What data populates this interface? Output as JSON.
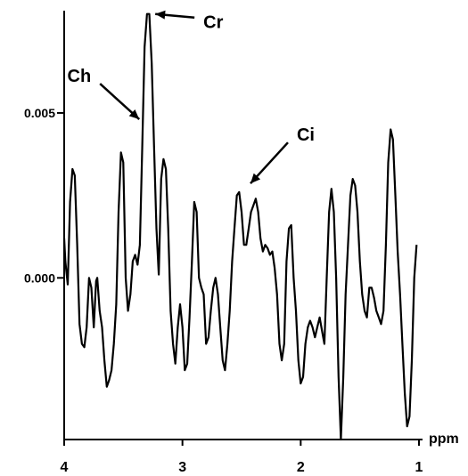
{
  "chart_data": {
    "type": "line",
    "title": "",
    "xlabel": "ppm",
    "ylabel": "",
    "xlim": [
      4.0,
      1.0
    ],
    "ylim": [
      -0.0049,
      0.0081
    ],
    "x_reversed": true,
    "grid": false,
    "x_ticks": [
      {
        "value": 4,
        "label": "4"
      },
      {
        "value": 3,
        "label": "3"
      },
      {
        "value": 2,
        "label": "2"
      },
      {
        "value": 1,
        "label": "1"
      }
    ],
    "y_ticks": [
      {
        "value": 0.0,
        "label": "0.000"
      },
      {
        "value": 0.005,
        "label": "0.005"
      }
    ],
    "series": [
      {
        "color": "#000000",
        "x": [
          4.0,
          3.99,
          3.97,
          3.95,
          3.93,
          3.91,
          3.89,
          3.87,
          3.85,
          3.83,
          3.81,
          3.79,
          3.77,
          3.75,
          3.73,
          3.72,
          3.7,
          3.68,
          3.66,
          3.64,
          3.62,
          3.6,
          3.58,
          3.56,
          3.54,
          3.52,
          3.5,
          3.48,
          3.46,
          3.44,
          3.42,
          3.4,
          3.38,
          3.36,
          3.34,
          3.32,
          3.3,
          3.28,
          3.26,
          3.24,
          3.22,
          3.2,
          3.18,
          3.16,
          3.14,
          3.12,
          3.1,
          3.08,
          3.06,
          3.04,
          3.02,
          3.0,
          2.98,
          2.96,
          2.94,
          2.92,
          2.9,
          2.88,
          2.86,
          2.84,
          2.82,
          2.8,
          2.78,
          2.76,
          2.74,
          2.72,
          2.7,
          2.68,
          2.66,
          2.64,
          2.62,
          2.6,
          2.58,
          2.56,
          2.54,
          2.52,
          2.5,
          2.48,
          2.46,
          2.44,
          2.42,
          2.4,
          2.38,
          2.36,
          2.34,
          2.32,
          2.3,
          2.28,
          2.26,
          2.24,
          2.22,
          2.2,
          2.18,
          2.16,
          2.14,
          2.12,
          2.1,
          2.08,
          2.06,
          2.04,
          2.02,
          2.0,
          1.98,
          1.96,
          1.94,
          1.92,
          1.9,
          1.88,
          1.86,
          1.84,
          1.82,
          1.8,
          1.78,
          1.76,
          1.74,
          1.72,
          1.7,
          1.68,
          1.66,
          1.64,
          1.62,
          1.6,
          1.58,
          1.56,
          1.54,
          1.52,
          1.5,
          1.48,
          1.46,
          1.44,
          1.42,
          1.4,
          1.38,
          1.36,
          1.34,
          1.32,
          1.3,
          1.28,
          1.26,
          1.24,
          1.22,
          1.2,
          1.18,
          1.16,
          1.14,
          1.12,
          1.1,
          1.08,
          1.06,
          1.04,
          1.02
        ],
        "y": [
          0.0012,
          0.0005,
          -0.0002,
          0.0023,
          0.0033,
          0.0031,
          0.001,
          -0.0014,
          -0.002,
          -0.0021,
          -0.0015,
          0.0,
          -0.0003,
          -0.0015,
          -0.0001,
          0.0,
          -0.001,
          -0.0015,
          -0.0025,
          -0.0033,
          -0.0031,
          -0.0028,
          -0.002,
          -0.0008,
          0.002,
          0.0038,
          0.0035,
          0.0,
          -0.001,
          -0.0005,
          0.0005,
          0.0007,
          0.0004,
          0.001,
          0.004,
          0.007,
          0.008,
          0.008,
          0.0065,
          0.004,
          0.0015,
          0.0001,
          0.003,
          0.0036,
          0.0033,
          0.0015,
          -0.001,
          -0.002,
          -0.0026,
          -0.0015,
          -0.0008,
          -0.0015,
          -0.0028,
          -0.0026,
          -0.0012,
          0.0005,
          0.0023,
          0.002,
          0.0,
          -0.0003,
          -0.0005,
          -0.002,
          -0.0018,
          -0.001,
          -0.0003,
          0.0,
          -0.0005,
          -0.0015,
          -0.0025,
          -0.0028,
          -0.002,
          -0.001,
          0.0005,
          0.0015,
          0.0025,
          0.0026,
          0.002,
          0.001,
          0.001,
          0.0015,
          0.002,
          0.0022,
          0.0024,
          0.002,
          0.0012,
          0.0008,
          0.001,
          0.0009,
          0.0007,
          0.0008,
          0.0003,
          -0.0005,
          -0.002,
          -0.0025,
          -0.002,
          0.0005,
          0.0015,
          0.0016,
          0.0,
          -0.001,
          -0.0025,
          -0.0032,
          -0.003,
          -0.002,
          -0.0015,
          -0.0013,
          -0.0015,
          -0.0018,
          -0.0015,
          -0.0012,
          -0.0016,
          -0.002,
          0.0,
          0.002,
          0.0027,
          0.002,
          0.0,
          -0.003,
          -0.0049,
          -0.003,
          -0.0005,
          0.001,
          0.0025,
          0.003,
          0.0028,
          0.002,
          0.0005,
          -0.0005,
          -0.001,
          -0.0012,
          -0.0003,
          -0.0003,
          -0.0006,
          -0.001,
          -0.0012,
          -0.0014,
          -0.001,
          0.001,
          0.0035,
          0.0045,
          0.0042,
          0.0025,
          0.0008,
          -0.0005,
          -0.002,
          -0.0035,
          -0.0045,
          -0.0042,
          -0.0025,
          0.0,
          0.001
        ]
      }
    ],
    "annotations": [
      {
        "label": "Cr",
        "x": 3.26,
        "y": 0.008
      },
      {
        "label": "Ch",
        "x": 3.32,
        "y": 0.0047
      },
      {
        "label": "Ci",
        "x": 2.47,
        "y": 0.0027
      }
    ]
  }
}
